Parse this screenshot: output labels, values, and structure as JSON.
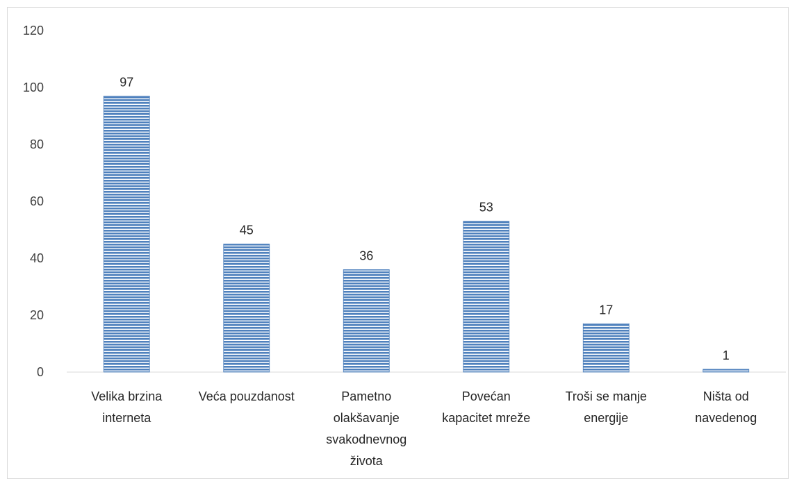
{
  "chart_data": {
    "type": "bar",
    "categories": [
      [
        "Velika brzina",
        "interneta"
      ],
      [
        "Veća pouzdanost"
      ],
      [
        "Pametno",
        "olakšavanje",
        "svakodnevnog",
        "života"
      ],
      [
        "Povećan",
        "kapacitet mreže"
      ],
      [
        "Troši se manje",
        "energije"
      ],
      [
        "Ništa od",
        "navedenog"
      ]
    ],
    "values": [
      97,
      45,
      36,
      53,
      17,
      1
    ],
    "data_labels": [
      "97",
      "45",
      "36",
      "53",
      "17",
      "1"
    ],
    "y_ticks": [
      "0",
      "20",
      "40",
      "60",
      "80",
      "100",
      "120"
    ],
    "ylim": [
      0,
      120
    ],
    "title": "",
    "xlabel": "",
    "ylabel": "",
    "grid": false,
    "legend": "none",
    "bar_color": "#4f81bd",
    "bar_stripe_color": "#ffffff",
    "axis_color": "#d9d9d9"
  }
}
